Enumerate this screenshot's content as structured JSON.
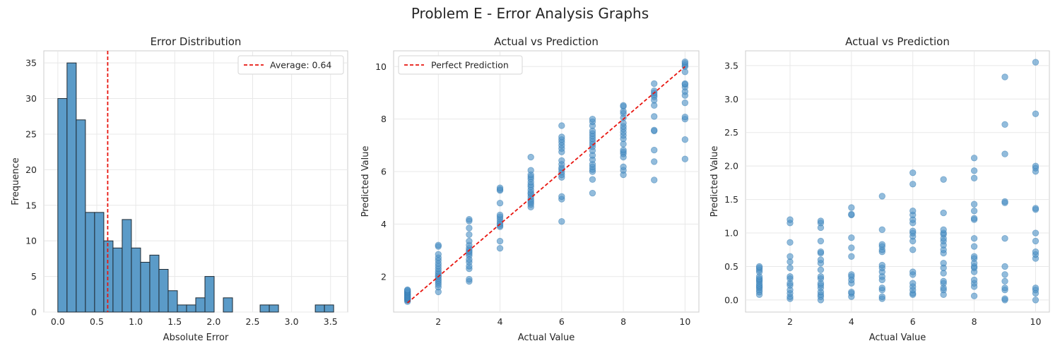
{
  "suptitle": "Problem E - Error Analysis Graphs",
  "colors": {
    "bar_fill": "#5b9bc8",
    "bar_edge": "#1f2a33",
    "point": "#4f93c6",
    "reference_line": "#e8150f",
    "grid": "#e8e8e8",
    "spine": "#cccccc"
  },
  "chart_data": [
    {
      "type": "bar",
      "subtype": "histogram",
      "title": "Error Distribution",
      "xlabel": "Absolute Error",
      "ylabel": "Frequence",
      "xlim": [
        -0.18,
        3.72
      ],
      "ylim": [
        0,
        36.7
      ],
      "xticks": [
        0,
        0.5,
        1.0,
        1.5,
        2.0,
        2.5,
        3.0,
        3.5
      ],
      "xtick_labels": [
        "0.0",
        "0.5",
        "1.0",
        "1.5",
        "2.0",
        "2.5",
        "3.0",
        "3.5"
      ],
      "yticks": [
        0,
        5,
        10,
        15,
        20,
        25,
        30,
        35
      ],
      "ytick_labels": [
        "0",
        "5",
        "10",
        "15",
        "20",
        "25",
        "30",
        "35"
      ],
      "bin_start": 0.0,
      "bin_width": 0.118,
      "counts": [
        30,
        35,
        27,
        14,
        14,
        10,
        9,
        13,
        9,
        7,
        8,
        6,
        3,
        1,
        1,
        2,
        5,
        0,
        2,
        0,
        0,
        0,
        1,
        1,
        0,
        0,
        0,
        0,
        1,
        1
      ],
      "mean_line": {
        "value": 0.64,
        "label": "Average: 0.64"
      },
      "legend": "upper right",
      "grid": true
    },
    {
      "type": "scatter",
      "title": "Actual vs Prediction",
      "xlabel": "Actual Value",
      "ylabel": "Predicted Value",
      "xlim": [
        0.55,
        10.45
      ],
      "ylim": [
        0.65,
        10.6
      ],
      "xticks": [
        2,
        4,
        6,
        8,
        10
      ],
      "xtick_labels": [
        "2",
        "4",
        "6",
        "8",
        "10"
      ],
      "yticks": [
        2,
        4,
        6,
        8,
        10
      ],
      "ytick_labels": [
        "2",
        "4",
        "6",
        "8",
        "10"
      ],
      "reference_line": {
        "from": [
          1,
          1
        ],
        "to": [
          10,
          10
        ],
        "label": "Perfect Prediction"
      },
      "legend": "upper left",
      "grid": true,
      "series": [
        {
          "x": 1,
          "y": [
            1.05,
            1.1,
            1.12,
            1.15,
            1.18,
            1.2,
            1.22,
            1.25,
            1.28,
            1.3,
            1.33,
            1.35,
            1.38,
            1.4,
            1.42,
            1.45,
            1.48,
            1.5
          ]
        },
        {
          "x": 2,
          "y": [
            1.42,
            1.6,
            1.7,
            1.78,
            1.85,
            1.92,
            2.0,
            2.05,
            2.12,
            2.2,
            2.3,
            2.4,
            2.5,
            2.62,
            2.72,
            2.85,
            3.15,
            3.2
          ]
        },
        {
          "x": 3,
          "y": [
            1.82,
            1.9,
            2.3,
            2.4,
            2.55,
            2.65,
            2.8,
            2.88,
            2.95,
            3.0,
            3.08,
            3.2,
            3.35,
            3.6,
            3.85,
            4.12,
            4.18
          ]
        },
        {
          "x": 4,
          "y": [
            3.08,
            3.35,
            3.9,
            3.95,
            4.02,
            4.1,
            4.2,
            4.28,
            4.35,
            4.8,
            5.28,
            5.32,
            5.38
          ]
        },
        {
          "x": 5,
          "y": [
            4.65,
            4.75,
            4.82,
            4.88,
            4.95,
            5.05,
            5.15,
            5.2,
            5.3,
            5.42,
            5.5,
            5.6,
            5.72,
            5.8,
            5.88,
            6.05,
            6.55
          ]
        },
        {
          "x": 6,
          "y": [
            4.1,
            4.95,
            5.05,
            5.78,
            5.88,
            5.98,
            6.08,
            6.15,
            6.28,
            6.42,
            6.75,
            6.88,
            7.0,
            7.12,
            7.22,
            7.32,
            7.75
          ]
        },
        {
          "x": 7,
          "y": [
            5.18,
            5.7,
            6.0,
            6.08,
            6.18,
            6.28,
            6.45,
            6.62,
            6.8,
            6.95,
            7.05,
            7.15,
            7.25,
            7.35,
            7.45,
            7.55,
            7.75,
            7.9,
            8.0
          ]
        },
        {
          "x": 8,
          "y": [
            5.88,
            6.05,
            6.18,
            6.55,
            6.68,
            6.75,
            6.82,
            7.05,
            7.25,
            7.38,
            7.5,
            7.62,
            7.72,
            7.85,
            8.05,
            8.22,
            8.3,
            8.48,
            8.52
          ]
        },
        {
          "x": 9,
          "y": [
            5.68,
            6.38,
            6.82,
            7.55,
            7.58,
            8.1,
            8.52,
            8.72,
            8.85,
            8.92,
            9.0,
            9.08,
            9.35
          ]
        },
        {
          "x": 10,
          "y": [
            6.48,
            7.22,
            8.0,
            8.08,
            8.62,
            8.9,
            9.05,
            9.22,
            9.32,
            9.35,
            9.8,
            10.0,
            10.05,
            10.12,
            10.18
          ]
        }
      ]
    },
    {
      "type": "scatter",
      "title": "Actual vs Prediction",
      "xlabel": "Actual Value",
      "ylabel": "Predicted Value",
      "xlim": [
        0.55,
        10.45
      ],
      "ylim": [
        -0.18,
        3.72
      ],
      "xticks": [
        2,
        4,
        6,
        8,
        10
      ],
      "xtick_labels": [
        "2",
        "4",
        "6",
        "8",
        "10"
      ],
      "yticks": [
        0,
        0.5,
        1.0,
        1.5,
        2.0,
        2.5,
        3.0,
        3.5
      ],
      "ytick_labels": [
        "0.0",
        "0.5",
        "1.0",
        "1.5",
        "2.0",
        "2.5",
        "3.0",
        "3.5"
      ],
      "grid": true,
      "series": [
        {
          "x": 1,
          "y": [
            0.08,
            0.12,
            0.15,
            0.18,
            0.2,
            0.22,
            0.25,
            0.28,
            0.3,
            0.32,
            0.35,
            0.42,
            0.45,
            0.48,
            0.5
          ]
        },
        {
          "x": 2,
          "y": [
            0.02,
            0.05,
            0.1,
            0.15,
            0.22,
            0.25,
            0.32,
            0.35,
            0.48,
            0.57,
            0.65,
            0.86,
            1.15,
            1.2
          ]
        },
        {
          "x": 3,
          "y": [
            0.0,
            0.05,
            0.08,
            0.12,
            0.18,
            0.22,
            0.25,
            0.32,
            0.35,
            0.45,
            0.55,
            0.6,
            0.7,
            0.72,
            0.88,
            1.08,
            1.15,
            1.18
          ]
        },
        {
          "x": 4,
          "y": [
            0.05,
            0.1,
            0.12,
            0.25,
            0.3,
            0.35,
            0.38,
            0.65,
            0.78,
            0.93,
            1.27,
            1.28,
            1.38
          ]
        },
        {
          "x": 5,
          "y": [
            0.02,
            0.05,
            0.15,
            0.18,
            0.3,
            0.35,
            0.42,
            0.48,
            0.52,
            0.72,
            0.75,
            0.8,
            0.83,
            1.05,
            1.55
          ]
        },
        {
          "x": 6,
          "y": [
            0.08,
            0.1,
            0.15,
            0.2,
            0.25,
            0.38,
            0.42,
            0.75,
            0.88,
            0.95,
            1.0,
            1.03,
            1.15,
            1.2,
            1.27,
            1.33,
            1.73,
            1.9
          ]
        },
        {
          "x": 7,
          "y": [
            0.08,
            0.15,
            0.18,
            0.25,
            0.28,
            0.4,
            0.48,
            0.55,
            0.7,
            0.75,
            0.82,
            0.88,
            0.92,
            0.98,
            1.0,
            1.05,
            1.3,
            1.8
          ]
        },
        {
          "x": 8,
          "y": [
            0.06,
            0.2,
            0.25,
            0.3,
            0.42,
            0.48,
            0.5,
            0.55,
            0.62,
            0.65,
            0.8,
            0.92,
            1.2,
            1.22,
            1.33,
            1.43,
            1.82,
            1.93,
            2.12
          ]
        },
        {
          "x": 9,
          "y": [
            0.0,
            0.02,
            0.15,
            0.18,
            0.28,
            0.38,
            0.5,
            0.92,
            1.45,
            1.47,
            2.18,
            2.62,
            3.33
          ]
        },
        {
          "x": 10,
          "y": [
            0.0,
            0.1,
            0.15,
            0.18,
            0.62,
            0.68,
            0.72,
            0.88,
            1.0,
            1.35,
            1.37,
            1.92,
            1.97,
            2.0,
            2.78,
            3.55
          ]
        }
      ]
    }
  ]
}
